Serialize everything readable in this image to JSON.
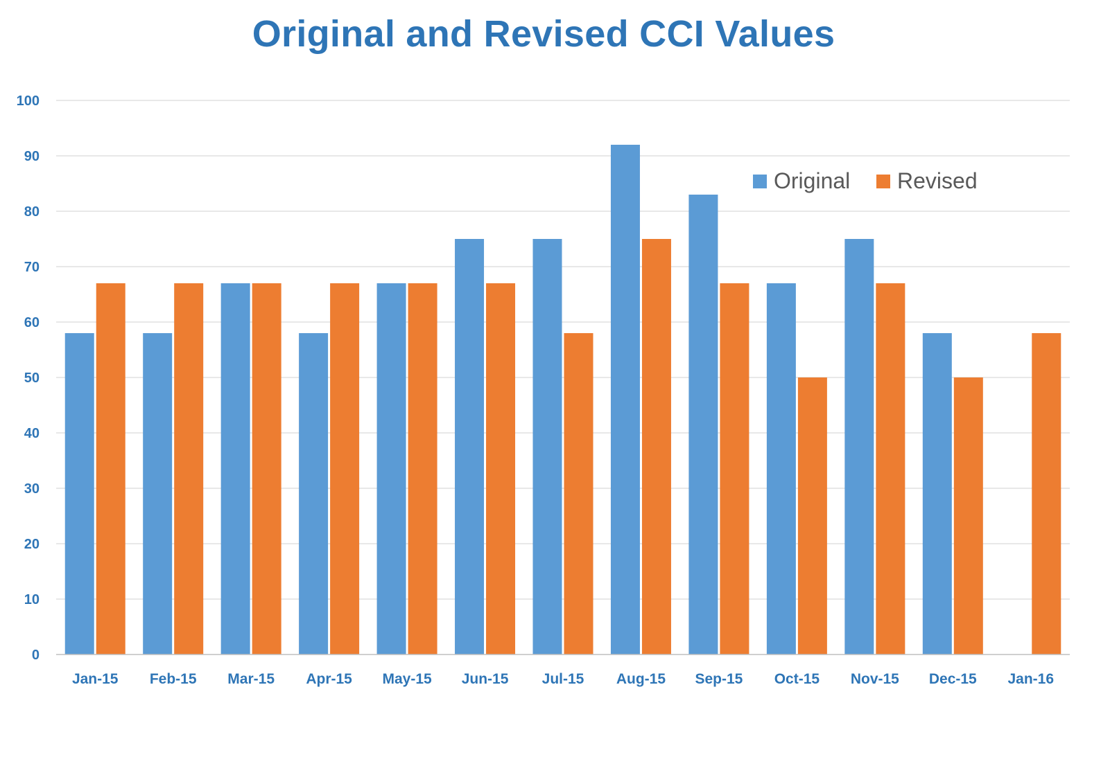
{
  "chart_data": {
    "type": "bar",
    "title": "Original and Revised CCI Values",
    "xlabel": "",
    "ylabel": "",
    "ylim": [
      0,
      100
    ],
    "yticks": [
      "0",
      "10",
      "20",
      "30",
      "40",
      "50",
      "60",
      "70",
      "80",
      "90",
      "100"
    ],
    "grid": true,
    "legend_position": "top-right",
    "categories": [
      "Jan-15",
      "Feb-15",
      "Mar-15",
      "Apr-15",
      "May-15",
      "Jun-15",
      "Jul-15",
      "Aug-15",
      "Sep-15",
      "Oct-15",
      "Nov-15",
      "Dec-15",
      "Jan-16"
    ],
    "series": [
      {
        "name": "Original",
        "color": "#5b9bd5",
        "values": [
          58,
          58,
          67,
          58,
          67,
          75,
          75,
          92,
          83,
          67,
          75,
          58,
          null
        ]
      },
      {
        "name": "Revised",
        "color": "#ed7d31",
        "values": [
          67,
          67,
          67,
          67,
          67,
          67,
          58,
          75,
          67,
          50,
          67,
          50,
          58
        ]
      }
    ]
  }
}
